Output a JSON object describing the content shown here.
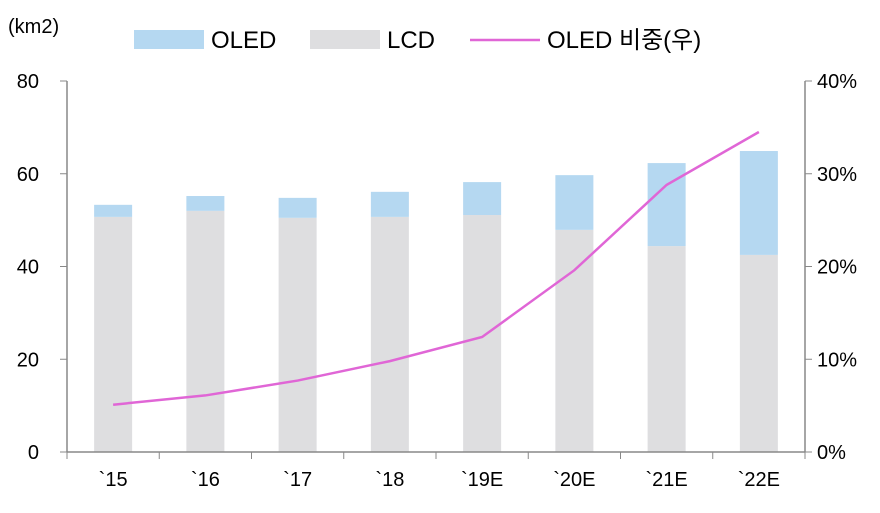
{
  "chart_data": {
    "type": "bar",
    "stacked": true,
    "unit_label": "(km2)",
    "categories": [
      "`15",
      "`16",
      "`17",
      "`18",
      "`19E",
      "`20E",
      "`21E",
      "`22E"
    ],
    "series": [
      {
        "name": "OLED",
        "type": "bar",
        "axis": "left",
        "color": "#b5d8f1",
        "values": [
          2.6,
          3.2,
          4.3,
          5.4,
          7.1,
          11.8,
          17.9,
          22.4
        ]
      },
      {
        "name": "LCD",
        "type": "bar",
        "axis": "left",
        "color": "#dedee0",
        "values": [
          50.7,
          52.0,
          50.5,
          50.7,
          51.1,
          47.9,
          44.4,
          42.5
        ]
      },
      {
        "name": "OLED 비중(우)",
        "type": "line",
        "axis": "right",
        "color": "#e066d6",
        "values": [
          5.1,
          6.1,
          7.7,
          9.8,
          12.4,
          19.6,
          28.8,
          34.5
        ]
      }
    ],
    "ylim": [
      0,
      80
    ],
    "yticks": [
      "0",
      "20",
      "40",
      "60",
      "80"
    ],
    "y2lim": [
      0,
      40
    ],
    "y2ticks": [
      "0%",
      "10%",
      "20%",
      "30%",
      "40%"
    ],
    "grid": false,
    "legend_position": "top"
  }
}
